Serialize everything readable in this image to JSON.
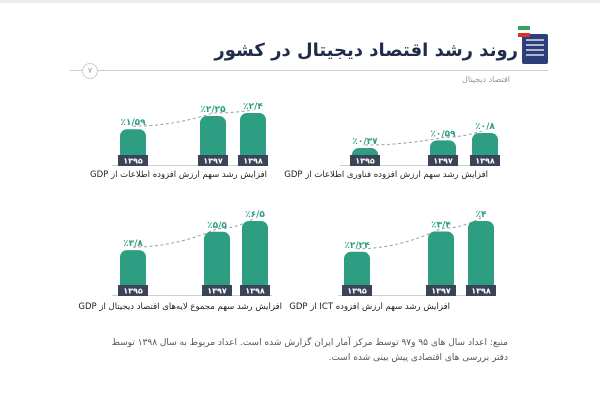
{
  "header": {
    "title": "روند رشد اقتصاد دیجیتال در کشور",
    "subtitle": "اقتصاد دیجیتال",
    "page_number": "۷"
  },
  "colors": {
    "bar": "#2e9e82",
    "base_label": "#3a4358",
    "title": "#1f2d4a"
  },
  "chart_data": [
    {
      "type": "bar",
      "title": "افزایش رشد سهم ارزش افزوده فناوری اطلاعات از GDP",
      "categories": [
        "۱۳۹۵",
        "۱۳۹۷",
        "۱۳۹۸"
      ],
      "values": [
        0.37,
        0.59,
        0.8
      ],
      "labels": [
        "٪۰/۳۷",
        "٪۰/۵۹",
        "٪۰/۸"
      ]
    },
    {
      "type": "bar",
      "title": "افزایش رشد سهم ارزش افزوده اطلاعات از GDP",
      "categories": [
        "۱۳۹۵",
        "۱۳۹۷",
        "۱۳۹۸"
      ],
      "values": [
        1.59,
        2.25,
        2.4
      ],
      "labels": [
        "٪۱/۵۹",
        "٪۲/۲۵",
        "٪۲/۴"
      ]
    },
    {
      "type": "bar",
      "title": "افزایش رشد سهم ارزش افزوده ICT از GDP",
      "categories": [
        "۱۳۹۵",
        "۱۳۹۷",
        "۱۳۹۸"
      ],
      "values": [
        2.24,
        3.4,
        4
      ],
      "labels": [
        "٪۲/۲۴",
        "٪۳/۴",
        "٪۴"
      ]
    },
    {
      "type": "bar",
      "title": "افزایش رشد سهم مجموع لایه‌های اقتصاد دیجیتال از GDP",
      "categories": [
        "۱۳۹۵",
        "۱۳۹۷",
        "۱۳۹۸"
      ],
      "values": [
        3.8,
        5.5,
        6.5
      ],
      "labels": [
        "٪۳/۸",
        "٪۵/۵",
        "٪۶/۵"
      ]
    }
  ],
  "footer": {
    "source": "منبع: اعداد سال های ۹۵ و۹۷ توسط مرکز آمار ایران گزارش شده است. اعداد مربوط به  سال ۱۳۹۸ توسط دفتر بررسی های اقتصادی پیش بینی شده است."
  }
}
